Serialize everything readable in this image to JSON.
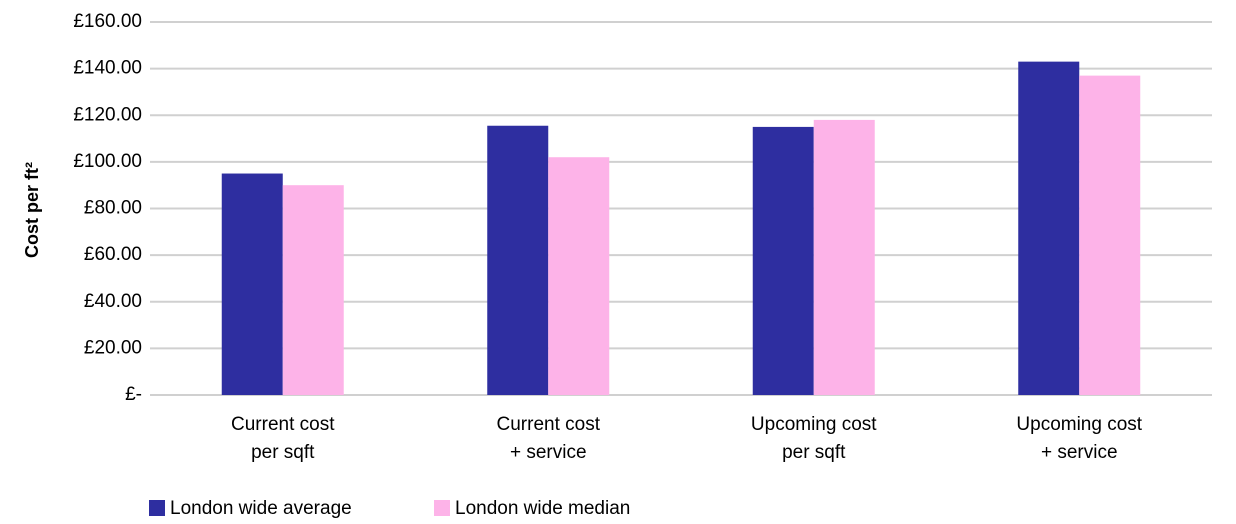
{
  "chart_data": {
    "type": "bar",
    "ylabel": "Cost per ft²",
    "xlabel": "",
    "ylim": [
      0,
      160
    ],
    "y_ticks": [
      {
        "value": 0,
        "label": "£-"
      },
      {
        "value": 20,
        "label": "£20.00"
      },
      {
        "value": 40,
        "label": "£40.00"
      },
      {
        "value": 60,
        "label": "£60.00"
      },
      {
        "value": 80,
        "label": "£80.00"
      },
      {
        "value": 100,
        "label": "£100.00"
      },
      {
        "value": 120,
        "label": "£120.00"
      },
      {
        "value": 140,
        "label": "£140.00"
      },
      {
        "value": 160,
        "label": "£160.00"
      }
    ],
    "categories": [
      [
        "Current cost",
        "per sqft"
      ],
      [
        "Current cost",
        "+ service"
      ],
      [
        "Upcoming cost",
        "per sqft"
      ],
      [
        "Upcoming cost",
        "+ service"
      ]
    ],
    "series": [
      {
        "name": "London wide average",
        "color": "#2e2ea0",
        "values": [
          95,
          115.5,
          115,
          143
        ]
      },
      {
        "name": "London wide median",
        "color": "#fdb3e8",
        "values": [
          90,
          102,
          118,
          137
        ]
      }
    ],
    "grid": true,
    "legend_position": "bottom-left",
    "gridline_color": "#d0d0d0"
  }
}
